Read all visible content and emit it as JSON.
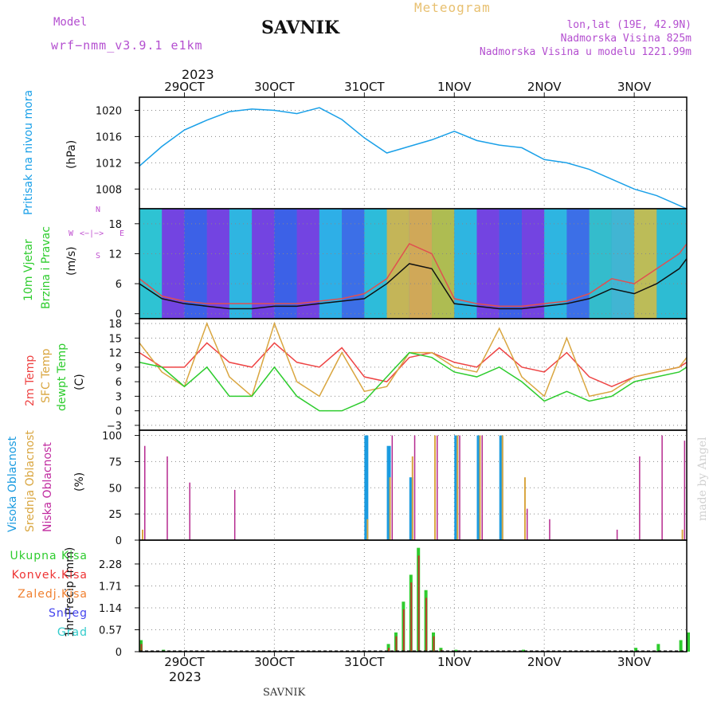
{
  "header": {
    "model_label": "Model",
    "model_name": "wrf−nmm_v3.9.1  e1km",
    "title": "SAVNIK",
    "meteogram_label": "Meteogram",
    "lonlat": "lon,lat (19E, 42.9N)",
    "altitude": "Nadmorska Visina 825m",
    "model_altitude": "Nadmorska Visina u modelu 1221.99m",
    "year_top": "2023",
    "footer_station": "SAVNIK",
    "watermark": "made by Angel"
  },
  "time_axis": {
    "ticks": [
      "29OCT",
      "30OCT",
      "31OCT",
      "1NOV",
      "2NOV",
      "3NOV"
    ],
    "tick_hours": [
      12,
      36,
      60,
      84,
      108,
      132
    ],
    "year_bottom": "2023",
    "start_hour": 0,
    "end_hour": 146
  },
  "panels": {
    "pressure": {
      "label": "Pritisak na nivou mora",
      "unit": "(hPa)"
    },
    "wind": {
      "label1": "10m Vjetar",
      "label2": "Brzina i Pravac",
      "unit": "(m/s)",
      "compass": {
        "n": "N",
        "s": "S",
        "e": "E",
        "w": "W",
        "arrows": "<−|−>"
      }
    },
    "temperature": {
      "label1": "2m Temp",
      "label2": "SFC Temp",
      "label3": "dewpt Temp",
      "unit": "(C)"
    },
    "clouds": {
      "label1": "Visoka Oblacnost",
      "label2": "Srednja Oblacnost",
      "label3": "Niska Oblacnost",
      "unit": "(%)"
    },
    "precip": {
      "unit": "1hr Precip (mm)",
      "legend": [
        "Ukupna Kisa",
        "Konvek.Kisa",
        "Zaledj.Kisa",
        "Snijeg",
        "Grad"
      ],
      "legend_colors": [
        "#2ecc2e",
        "#ee3333",
        "#f08030",
        "#4444ee",
        "#33cccc"
      ]
    }
  },
  "colors": {
    "pressure": "#1aa0e8",
    "t2m": "#ee4444",
    "sfc": "#d9a640",
    "dew": "#2ecc2e",
    "high_cloud": "#1a9be0",
    "mid_cloud": "#d9a640",
    "low_cloud": "#b52a8f",
    "precip_total": "#2ecc2e",
    "precip_conv": "#c0392b",
    "wind_speed": "#111111",
    "gust": "#e05050"
  },
  "chart_data": [
    {
      "type": "line",
      "name": "pressure",
      "ylim": [
        1005,
        1022
      ],
      "yticks": [
        1008,
        1012,
        1016,
        1020
      ],
      "x": [
        0,
        6,
        12,
        18,
        24,
        30,
        36,
        42,
        48,
        54,
        60,
        66,
        72,
        78,
        84,
        90,
        96,
        102,
        108,
        114,
        120,
        126,
        132,
        138,
        144,
        146
      ],
      "series": [
        {
          "values": [
            1011.5,
            1014.5,
            1017,
            1018.5,
            1019.8,
            1020.2,
            1020,
            1019.5,
            1020.4,
            1018.6,
            1015.8,
            1013.5,
            1014.5,
            1015.5,
            1016.8,
            1015.4,
            1014.7,
            1014.3,
            1012.5,
            1012,
            1011,
            1009.5,
            1008,
            1007,
            1005.5,
            1005
          ]
        }
      ]
    },
    {
      "type": "line",
      "name": "wind",
      "ylim": [
        -1,
        21
      ],
      "yticks": [
        0,
        6,
        12,
        18
      ],
      "x": [
        0,
        6,
        12,
        18,
        24,
        30,
        36,
        42,
        48,
        54,
        60,
        66,
        72,
        78,
        84,
        90,
        96,
        102,
        108,
        114,
        120,
        126,
        132,
        138,
        144,
        146
      ],
      "series": [
        {
          "values": [
            6,
            3,
            2,
            1.5,
            1,
            1,
            1.5,
            1.5,
            2,
            2.5,
            3,
            6,
            10,
            9,
            2,
            1.5,
            1,
            1,
            1.5,
            2,
            3,
            5,
            4,
            6,
            9,
            11
          ]
        },
        {
          "values": [
            7,
            3.5,
            2.5,
            2,
            2,
            2,
            2,
            2,
            2.5,
            3,
            4,
            7,
            14,
            12,
            3,
            2,
            1.5,
            1.5,
            2,
            2.5,
            4,
            7,
            6,
            9,
            12,
            14
          ]
        }
      ]
    },
    {
      "type": "line",
      "name": "temperature",
      "ylim": [
        -4,
        19
      ],
      "yticks": [
        -3,
        0,
        3,
        6,
        9,
        12,
        15,
        18
      ],
      "x": [
        0,
        6,
        12,
        18,
        24,
        30,
        36,
        42,
        48,
        54,
        60,
        66,
        72,
        78,
        84,
        90,
        96,
        102,
        108,
        114,
        120,
        126,
        132,
        138,
        144,
        146
      ],
      "series": [
        {
          "values": [
            12,
            9,
            9,
            14,
            10,
            9,
            14,
            10,
            9,
            13,
            7,
            6,
            11,
            12,
            10,
            9,
            13,
            9,
            8,
            12,
            7,
            5,
            7,
            8,
            9,
            10
          ]
        },
        {
          "values": [
            14,
            8,
            5,
            18,
            7,
            3,
            18,
            6,
            3,
            12,
            4,
            5,
            12,
            12,
            9,
            8,
            17,
            7,
            3,
            15,
            3,
            4,
            7,
            8,
            9,
            11
          ]
        },
        {
          "values": [
            10,
            9,
            5,
            9,
            3,
            3,
            9,
            3,
            0,
            0,
            2,
            7,
            12,
            11,
            8,
            7,
            9,
            6,
            2,
            4,
            2,
            3,
            6,
            7,
            8,
            9
          ]
        }
      ]
    },
    {
      "type": "bar",
      "name": "clouds",
      "ylim": [
        0,
        105
      ],
      "yticks": [
        0,
        25,
        50,
        75,
        100
      ],
      "x": [
        0,
        6,
        12,
        18,
        24,
        30,
        36,
        42,
        48,
        54,
        60,
        66,
        72,
        78,
        84,
        90,
        96,
        102,
        108,
        114,
        120,
        126,
        132,
        138,
        144
      ],
      "series": [
        {
          "values": [
            0,
            0,
            0,
            0,
            0,
            0,
            0,
            0,
            0,
            0,
            100,
            90,
            60,
            0,
            100,
            100,
            100,
            0,
            0,
            0,
            0,
            0,
            0,
            0,
            0
          ]
        },
        {
          "values": [
            10,
            0,
            0,
            0,
            0,
            0,
            0,
            0,
            0,
            0,
            20,
            60,
            80,
            100,
            100,
            100,
            100,
            60,
            0,
            0,
            0,
            0,
            0,
            0,
            10
          ]
        },
        {
          "values": [
            90,
            80,
            55,
            0,
            48,
            0,
            0,
            0,
            0,
            0,
            0,
            100,
            100,
            100,
            100,
            100,
            0,
            30,
            20,
            0,
            0,
            10,
            80,
            100,
            95
          ]
        }
      ]
    },
    {
      "type": "bar",
      "name": "precip",
      "ylim": [
        0,
        2.9
      ],
      "yticks": [
        0,
        0.57,
        1.14,
        1.71,
        2.28
      ],
      "x": [
        0,
        6,
        12,
        18,
        24,
        30,
        36,
        42,
        48,
        54,
        60,
        66,
        68,
        70,
        72,
        74,
        76,
        78,
        80,
        84,
        90,
        96,
        102,
        108,
        114,
        120,
        126,
        132,
        138,
        144,
        146
      ],
      "series": [
        {
          "values": [
            0.3,
            0.05,
            0,
            0,
            0,
            0,
            0,
            0,
            0,
            0,
            0,
            0.2,
            0.5,
            1.3,
            2.0,
            2.7,
            1.6,
            0.5,
            0.1,
            0.05,
            0,
            0,
            0.05,
            0,
            0,
            0,
            0,
            0.1,
            0.2,
            0.3,
            0.5
          ]
        },
        {
          "values": [
            0.2,
            0,
            0,
            0,
            0,
            0,
            0,
            0,
            0,
            0,
            0,
            0.1,
            0.4,
            1.1,
            1.8,
            2.5,
            1.4,
            0.4,
            0.05,
            0,
            0,
            0,
            0,
            0,
            0,
            0,
            0,
            0,
            0,
            0,
            0
          ]
        }
      ]
    }
  ]
}
